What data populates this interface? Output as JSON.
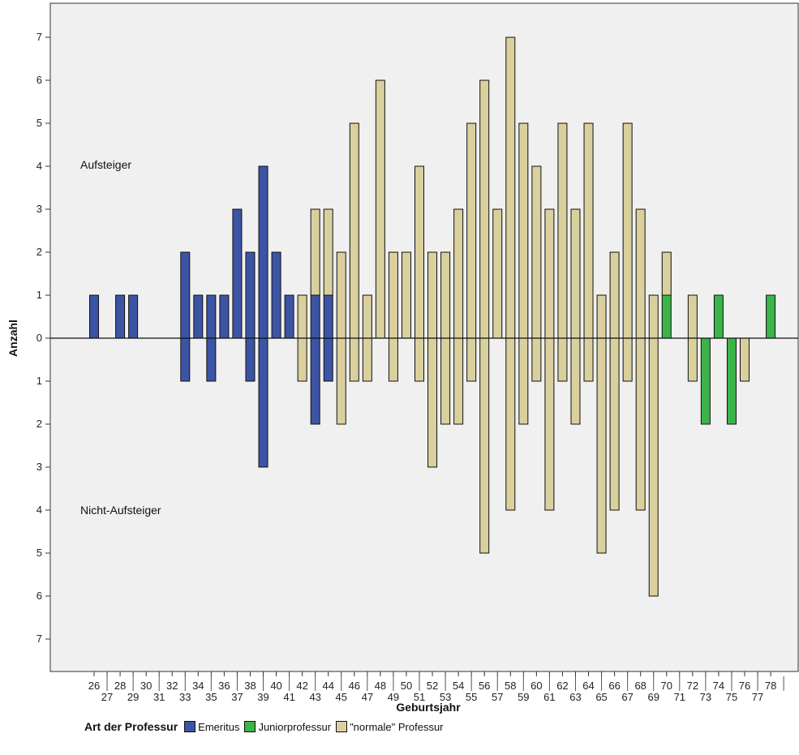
{
  "chart_data": {
    "type": "bar",
    "subtype": "diverging-stacked",
    "xlabel": "Geburtsjahr",
    "ylabel": "Anzahl",
    "ylim": [
      -7.5,
      7.7
    ],
    "yticks": [
      7,
      6,
      5,
      4,
      3,
      2,
      1,
      0,
      1,
      2,
      3,
      4,
      5,
      6,
      7
    ],
    "ytick_values": [
      7,
      6,
      5,
      4,
      3,
      2,
      1,
      0,
      -1,
      -2,
      -3,
      -4,
      -5,
      -6,
      -7
    ],
    "categories": [
      "26",
      "27",
      "28",
      "29",
      "30",
      "31",
      "32",
      "33",
      "34",
      "35",
      "36",
      "37",
      "38",
      "39",
      "40",
      "41",
      "42",
      "43",
      "44",
      "45",
      "46",
      "47",
      "48",
      "49",
      "50",
      "51",
      "52",
      "53",
      "54",
      "55",
      "56",
      "57",
      "58",
      "59",
      "60",
      "61",
      "62",
      "63",
      "64",
      "65",
      "66",
      "67",
      "68",
      "69",
      "70",
      "71",
      "72",
      "73",
      "74",
      "75",
      "76",
      "77",
      "78"
    ],
    "annotations": {
      "upper": "Aufsteiger",
      "lower": "Nicht-Aufsteiger"
    },
    "legend": {
      "title": "Art der Professur",
      "position": "bottom-left"
    },
    "grid": false,
    "series": [
      {
        "name": "Emeritus",
        "color": "#3c54a4",
        "aufsteiger": [
          1,
          0,
          1,
          1,
          0,
          0,
          0,
          2,
          1,
          1,
          1,
          3,
          2,
          4,
          2,
          1,
          0,
          1,
          1,
          0,
          0,
          0,
          0,
          0,
          0,
          0,
          0,
          0,
          0,
          0,
          0,
          0,
          0,
          0,
          0,
          0,
          0,
          0,
          0,
          0,
          0,
          0,
          0,
          0,
          0,
          0,
          0,
          0,
          0,
          0,
          0,
          0,
          0
        ],
        "nicht_aufsteiger": [
          0,
          0,
          0,
          0,
          0,
          0,
          0,
          1,
          0,
          1,
          0,
          0,
          1,
          3,
          0,
          0,
          0,
          2,
          1,
          0,
          0,
          0,
          0,
          0,
          0,
          0,
          0,
          0,
          0,
          0,
          0,
          0,
          0,
          0,
          0,
          0,
          0,
          0,
          0,
          0,
          0,
          0,
          0,
          0,
          0,
          0,
          0,
          0,
          0,
          0,
          0,
          0,
          0
        ]
      },
      {
        "name": "Juniorprofessur",
        "color": "#3cb44a",
        "aufsteiger": [
          0,
          0,
          0,
          0,
          0,
          0,
          0,
          0,
          0,
          0,
          0,
          0,
          0,
          0,
          0,
          0,
          0,
          0,
          0,
          0,
          0,
          0,
          0,
          0,
          0,
          0,
          0,
          0,
          0,
          0,
          0,
          0,
          0,
          0,
          0,
          0,
          0,
          0,
          0,
          0,
          0,
          0,
          0,
          0,
          1,
          0,
          0,
          0,
          1,
          0,
          0,
          0,
          1
        ],
        "nicht_aufsteiger": [
          0,
          0,
          0,
          0,
          0,
          0,
          0,
          0,
          0,
          0,
          0,
          0,
          0,
          0,
          0,
          0,
          0,
          0,
          0,
          0,
          0,
          0,
          0,
          0,
          0,
          0,
          0,
          0,
          0,
          0,
          0,
          0,
          0,
          0,
          0,
          0,
          0,
          0,
          0,
          0,
          0,
          0,
          0,
          0,
          0,
          0,
          0,
          2,
          0,
          2,
          0,
          0,
          0
        ]
      },
      {
        "name": "\"normale\" Professur",
        "color": "#d9d09d",
        "aufsteiger": [
          0,
          0,
          0,
          0,
          0,
          0,
          0,
          0,
          0,
          0,
          0,
          0,
          0,
          0,
          0,
          0,
          1,
          2,
          2,
          2,
          5,
          1,
          6,
          2,
          2,
          4,
          2,
          2,
          3,
          5,
          6,
          3,
          7,
          5,
          4,
          3,
          5,
          3,
          5,
          1,
          2,
          5,
          3,
          1,
          1,
          0,
          1,
          0,
          0,
          0,
          0,
          0,
          0
        ],
        "nicht_aufsteiger": [
          0,
          0,
          0,
          0,
          0,
          0,
          0,
          0,
          0,
          0,
          0,
          0,
          0,
          0,
          0,
          0,
          1,
          0,
          0,
          2,
          1,
          1,
          0,
          1,
          0,
          1,
          3,
          2,
          2,
          1,
          5,
          0,
          4,
          2,
          1,
          4,
          1,
          2,
          1,
          5,
          4,
          1,
          4,
          6,
          0,
          0,
          1,
          0,
          0,
          0,
          1,
          0,
          0
        ]
      }
    ]
  }
}
